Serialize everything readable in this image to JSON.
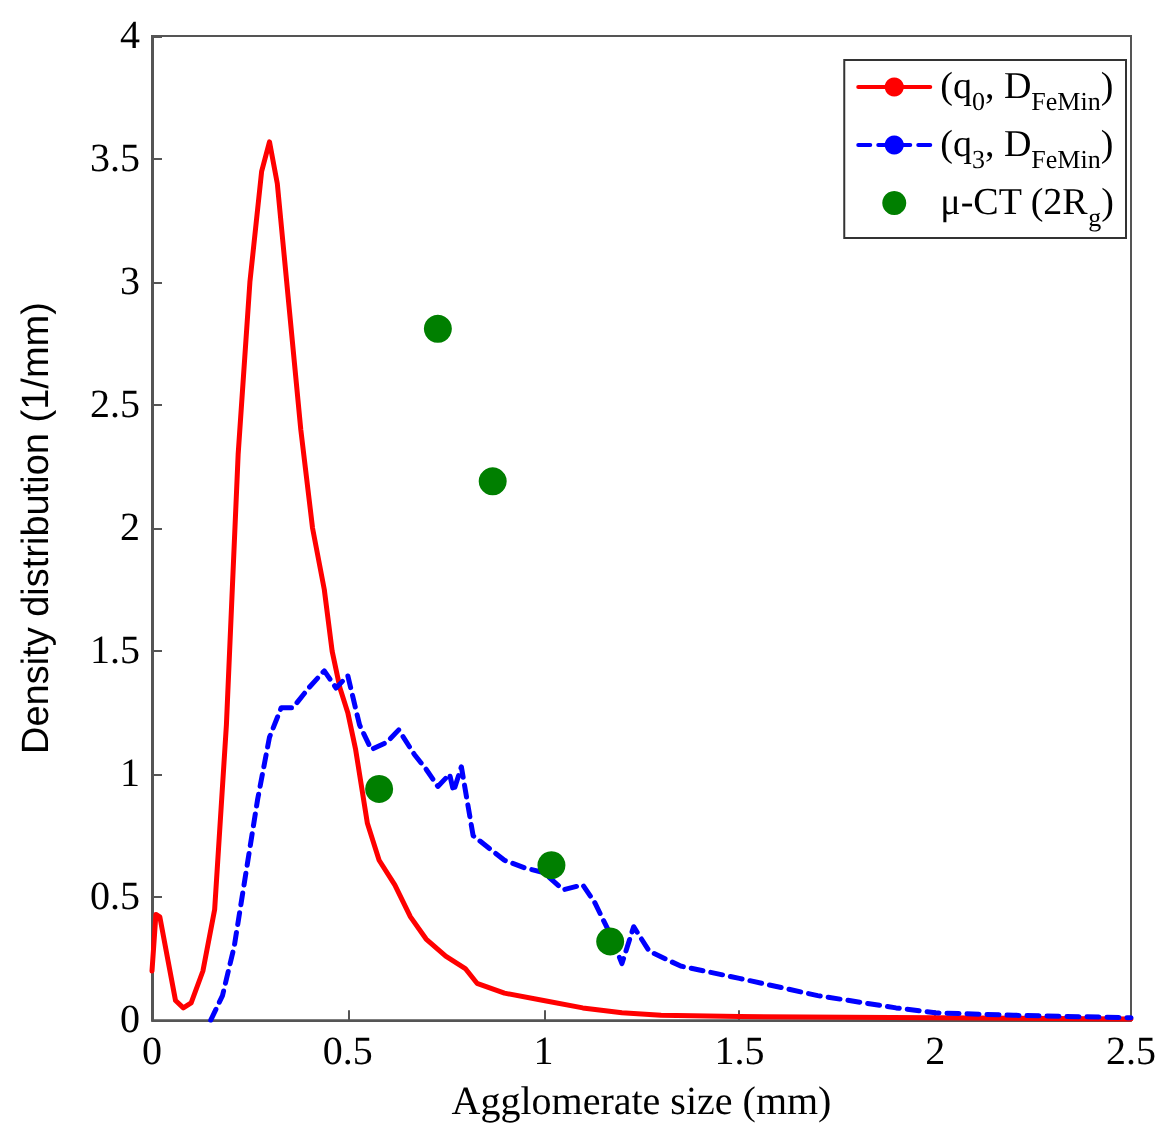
{
  "chart_data": {
    "type": "line",
    "xlabel": "Agglomerate size (mm)",
    "ylabel": "Density distribution (1/mm)",
    "xlim": [
      0,
      2.5
    ],
    "xticks": [
      0,
      0.5,
      1,
      1.5,
      2,
      2.5
    ],
    "ylim": [
      0,
      4
    ],
    "yticks": [
      0,
      0.5,
      1,
      1.5,
      2,
      2.5,
      3,
      3.5,
      4
    ],
    "grid": false,
    "legend": "top right",
    "marker": "none",
    "series": [
      {
        "name": "(q$_{0}$, D$_{FeMin}$)",
        "color": "#ff0000",
        "line_style": "solid",
        "x": [
          0,
          0.01,
          0.02,
          0.04,
          0.06,
          0.08,
          0.1,
          0.13,
          0.16,
          0.19,
          0.22,
          0.25,
          0.28,
          0.3,
          0.32,
          0.35,
          0.38,
          0.41,
          0.44,
          0.46,
          0.48,
          0.5,
          0.52,
          0.55,
          0.58,
          0.62,
          0.66,
          0.7,
          0.75,
          0.78,
          0.8,
          0.83,
          0.9,
          1.0,
          1.1,
          1.2,
          1.3,
          1.5,
          2.0,
          2.5
        ],
        "values": [
          0.2,
          0.43,
          0.42,
          0.25,
          0.08,
          0.05,
          0.07,
          0.2,
          0.45,
          1.2,
          2.3,
          3.0,
          3.45,
          3.57,
          3.4,
          2.9,
          2.4,
          2.0,
          1.75,
          1.5,
          1.35,
          1.25,
          1.1,
          0.8,
          0.65,
          0.55,
          0.42,
          0.33,
          0.26,
          0.23,
          0.21,
          0.15,
          0.11,
          0.08,
          0.05,
          0.03,
          0.02,
          0.015,
          0.01,
          0.005
        ]
      },
      {
        "name": "(q$_{3}$, D$_{FeMin}$)",
        "color": "#0000ff",
        "line_style": "dashed",
        "x": [
          0.15,
          0.18,
          0.21,
          0.24,
          0.27,
          0.3,
          0.33,
          0.36,
          0.4,
          0.44,
          0.47,
          0.5,
          0.53,
          0.56,
          0.6,
          0.63,
          0.67,
          0.7,
          0.73,
          0.76,
          0.77,
          0.79,
          0.82,
          0.86,
          0.9,
          0.95,
          1.0,
          1.05,
          1.1,
          1.13,
          1.17,
          1.2,
          1.23,
          1.27,
          1.35,
          1.5,
          1.7,
          1.9,
          2.0,
          2.2,
          2.5
        ],
        "values": [
          0,
          0.1,
          0.3,
          0.6,
          0.9,
          1.15,
          1.27,
          1.27,
          1.35,
          1.42,
          1.35,
          1.4,
          1.2,
          1.1,
          1.13,
          1.18,
          1.08,
          1.02,
          0.95,
          1.0,
          0.93,
          1.03,
          0.75,
          0.7,
          0.65,
          0.62,
          0.6,
          0.53,
          0.55,
          0.48,
          0.35,
          0.23,
          0.38,
          0.28,
          0.22,
          0.17,
          0.1,
          0.05,
          0.03,
          0.02,
          0.01
        ]
      },
      {
        "name": "μ-CT (2R$_{g}$)",
        "type": "scatter",
        "marker": "circle",
        "color": "#007f00",
        "x": [
          0.58,
          0.73,
          0.87,
          1.02,
          1.17
        ],
        "values": [
          0.94,
          2.81,
          2.19,
          0.63,
          0.32
        ]
      }
    ]
  }
}
